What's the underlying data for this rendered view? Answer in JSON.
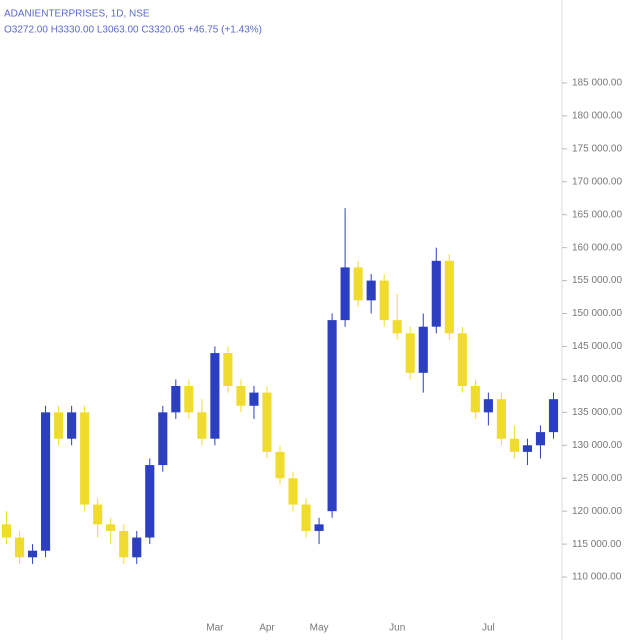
{
  "chart_data": {
    "type": "candlestick",
    "title": "ADANIENTERPRISES, 1D, NSE",
    "subtitle": "O3272.00 H3330.00 L3063.00 C3320.05 +46.75 (+1.43%)",
    "categories": [
      null,
      null,
      null,
      null,
      null,
      null,
      null,
      null,
      null,
      null,
      null,
      null,
      null,
      null,
      null,
      null,
      "Mar",
      null,
      null,
      null,
      "Apr",
      null,
      null,
      null,
      "May",
      null,
      null,
      null,
      null,
      null,
      "Jun",
      null,
      null,
      null,
      null,
      null,
      null,
      "Jul",
      null,
      null,
      null,
      null,
      null
    ],
    "open": [
      118,
      116,
      113,
      114,
      135,
      131,
      135,
      121,
      118,
      117,
      113,
      116,
      127,
      135,
      139,
      135,
      131,
      144,
      139,
      136,
      138,
      129,
      125,
      121,
      117,
      120,
      149,
      157,
      152,
      155,
      149,
      147,
      141,
      148,
      158,
      147,
      139,
      135,
      137,
      131,
      129,
      130,
      132
    ],
    "high": [
      120,
      117,
      115,
      136,
      136,
      136,
      136,
      122,
      119,
      118,
      117,
      128,
      136,
      140,
      140,
      137,
      145,
      145,
      140,
      139,
      139,
      130,
      126,
      122,
      119,
      150,
      166,
      158,
      156,
      156,
      153,
      148,
      150,
      160,
      159,
      148,
      140,
      138,
      138,
      133,
      131,
      133,
      138
    ],
    "low": [
      115,
      112,
      112,
      113,
      130,
      130,
      120,
      116,
      115,
      112,
      112,
      115,
      126,
      134,
      134,
      130,
      130,
      138,
      135,
      134,
      128,
      124,
      120,
      116,
      115,
      119,
      148,
      151,
      150,
      148,
      146,
      140,
      138,
      147,
      146,
      138,
      134,
      133,
      130,
      128,
      127,
      128,
      131
    ],
    "close": [
      116,
      113,
      114,
      135,
      131,
      135,
      121,
      118,
      117,
      113,
      116,
      127,
      135,
      139,
      135,
      131,
      144,
      139,
      136,
      138,
      129,
      125,
      121,
      117,
      118,
      149,
      157,
      152,
      155,
      149,
      147,
      141,
      148,
      158,
      147,
      139,
      135,
      137,
      131,
      129,
      130,
      132,
      137
    ],
    "up_color": "#2b3fc0",
    "down_color": "#f0dc2e",
    "ylim": [
      105,
      190
    ],
    "yticks": [
      {
        "value": 110,
        "label": "110 000.00"
      },
      {
        "value": 115,
        "label": "115 000.00"
      },
      {
        "value": 120,
        "label": "120 000.00"
      },
      {
        "value": 125,
        "label": "125 000.00"
      },
      {
        "value": 130,
        "label": "130 000.00"
      },
      {
        "value": 135,
        "label": "135 000.00"
      },
      {
        "value": 140,
        "label": "140 000.00"
      },
      {
        "value": 145,
        "label": "145 000.00"
      },
      {
        "value": 150,
        "label": "150 000.00"
      },
      {
        "value": 155,
        "label": "155 000.00"
      },
      {
        "value": 160,
        "label": "160 000.00"
      },
      {
        "value": 165,
        "label": "165 000.00"
      },
      {
        "value": 170,
        "label": "170 000.00"
      },
      {
        "value": 175,
        "label": "175 000.00"
      },
      {
        "value": 180,
        "label": "180 000.00"
      },
      {
        "value": 185,
        "label": "185 000.00"
      }
    ]
  }
}
